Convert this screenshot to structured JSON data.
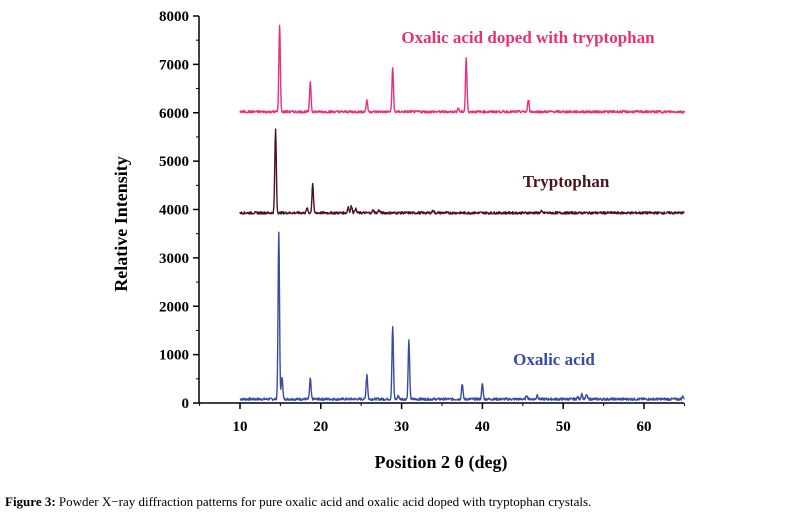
{
  "chart_data": {
    "type": "line",
    "xlabel": "Position 2 θ (deg)",
    "ylabel": "Relative Intensity",
    "xlim": [
      5,
      65
    ],
    "ylim": [
      0,
      8000
    ],
    "x_ticks": [
      10,
      20,
      30,
      40,
      50,
      60
    ],
    "y_ticks": [
      0,
      1000,
      2000,
      3000,
      4000,
      5000,
      6000,
      7000,
      8000
    ],
    "grid": false,
    "legend": "none (labels placed next to each curve)",
    "series": [
      {
        "name": "Oxalic acid",
        "color": "#3a4ba3",
        "baseline": 80,
        "x_range": [
          10,
          65
        ],
        "peaks": [
          {
            "x": 14.8,
            "y": 3530
          },
          {
            "x": 15.2,
            "y": 550
          },
          {
            "x": 18.7,
            "y": 500
          },
          {
            "x": 25.7,
            "y": 590
          },
          {
            "x": 28.9,
            "y": 1580
          },
          {
            "x": 29.6,
            "y": 150
          },
          {
            "x": 30.9,
            "y": 1290
          },
          {
            "x": 37.5,
            "y": 400
          },
          {
            "x": 40.0,
            "y": 400
          },
          {
            "x": 45.5,
            "y": 160
          },
          {
            "x": 46.8,
            "y": 170
          },
          {
            "x": 51.8,
            "y": 120
          },
          {
            "x": 52.3,
            "y": 190
          },
          {
            "x": 52.9,
            "y": 170
          },
          {
            "x": 64.8,
            "y": 140
          }
        ]
      },
      {
        "name": "Tryptophan",
        "color": "#4a1418",
        "baseline": 3930,
        "x_range": [
          10,
          65
        ],
        "peaks": [
          {
            "x": 14.4,
            "y": 5640
          },
          {
            "x": 18.3,
            "y": 4020
          },
          {
            "x": 19.0,
            "y": 4540
          },
          {
            "x": 23.4,
            "y": 4060
          },
          {
            "x": 23.8,
            "y": 4080
          },
          {
            "x": 24.3,
            "y": 4020
          },
          {
            "x": 26.5,
            "y": 3990
          },
          {
            "x": 27.2,
            "y": 3990
          },
          {
            "x": 33.9,
            "y": 3990
          },
          {
            "x": 47.3,
            "y": 3960
          }
        ]
      },
      {
        "name": "Oxalic acid doped with tryptophan",
        "color": "#e8307a",
        "baseline": 6020,
        "x_range": [
          10,
          65
        ],
        "peaks": [
          {
            "x": 14.9,
            "y": 7830
          },
          {
            "x": 18.7,
            "y": 6650
          },
          {
            "x": 25.7,
            "y": 6260
          },
          {
            "x": 28.9,
            "y": 6950
          },
          {
            "x": 37.0,
            "y": 6100
          },
          {
            "x": 38.0,
            "y": 7130
          },
          {
            "x": 45.7,
            "y": 6270
          }
        ]
      }
    ]
  },
  "caption": {
    "label": "Figure 3:",
    "text": " Powder X−ray diffraction patterns for pure oxalic acid and oxalic acid doped with tryptophan crystals."
  }
}
